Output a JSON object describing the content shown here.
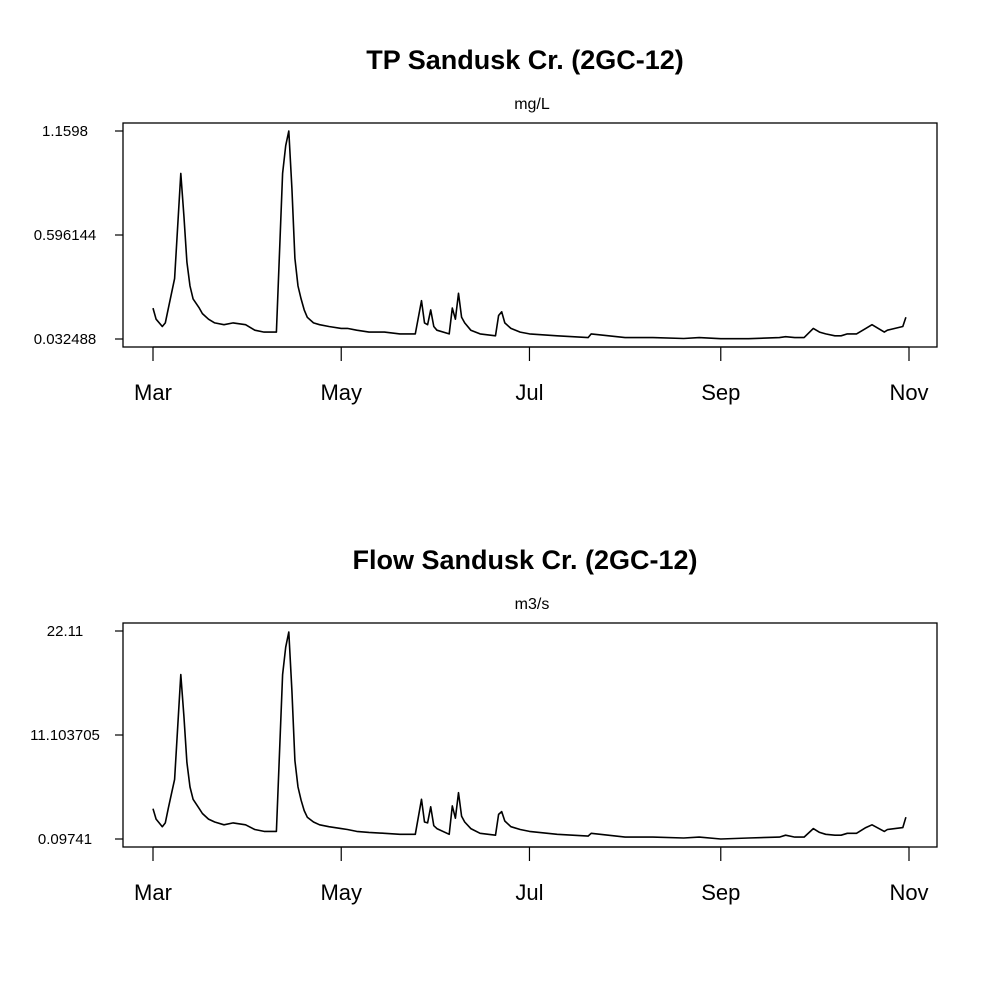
{
  "chart_data": [
    {
      "type": "line",
      "title": "TP Sandusk Cr. (2GC-12)",
      "ylabel": "mg/L",
      "xlabel": "",
      "ylim": [
        0.032488,
        1.1598
      ],
      "yticks": [
        {
          "value": 0.032488,
          "label": "0.032488"
        },
        {
          "value": 0.596144,
          "label": "0.596144"
        },
        {
          "value": 1.1598,
          "label": "1.1598"
        }
      ],
      "xticks": [
        {
          "date": "2012-03-01",
          "label": "Mar"
        },
        {
          "date": "2012-05-01",
          "label": "May"
        },
        {
          "date": "2012-07-01",
          "label": "Jul"
        },
        {
          "date": "2012-09-01",
          "label": "Sep"
        },
        {
          "date": "2012-11-01",
          "label": "Nov"
        }
      ],
      "xlim": [
        "2012-03-01",
        "2012-11-01"
      ],
      "grid": false,
      "series": [
        {
          "x": [
            "2012-03-01",
            "2012-03-02",
            "2012-03-04",
            "2012-03-05",
            "2012-03-06",
            "2012-03-07",
            "2012-03-08",
            "2012-03-10",
            "2012-03-11",
            "2012-03-12",
            "2012-03-13",
            "2012-03-14",
            "2012-03-16",
            "2012-03-17",
            "2012-03-19",
            "2012-03-21",
            "2012-03-24",
            "2012-03-27",
            "2012-03-31",
            "2012-04-03",
            "2012-04-06",
            "2012-04-10",
            "2012-04-12",
            "2012-04-13",
            "2012-04-14",
            "2012-04-15",
            "2012-04-16",
            "2012-04-17",
            "2012-04-18",
            "2012-04-19",
            "2012-04-20",
            "2012-04-22",
            "2012-04-24",
            "2012-04-27",
            "2012-05-01",
            "2012-05-03",
            "2012-05-06",
            "2012-05-10",
            "2012-05-15",
            "2012-05-20",
            "2012-05-25",
            "2012-05-27",
            "2012-05-28",
            "2012-05-29",
            "2012-05-30",
            "2012-05-31",
            "2012-06-01",
            "2012-06-05",
            "2012-06-06",
            "2012-06-07",
            "2012-06-08",
            "2012-06-09",
            "2012-06-10",
            "2012-06-12",
            "2012-06-15",
            "2012-06-20",
            "2012-06-21",
            "2012-06-22",
            "2012-06-23",
            "2012-06-25",
            "2012-06-28",
            "2012-07-01",
            "2012-07-10",
            "2012-07-20",
            "2012-07-21",
            "2012-08-01",
            "2012-08-10",
            "2012-08-20",
            "2012-08-25",
            "2012-09-01",
            "2012-09-10",
            "2012-09-20",
            "2012-09-22",
            "2012-09-25",
            "2012-09-28",
            "2012-10-01",
            "2012-10-03",
            "2012-10-05",
            "2012-10-08",
            "2012-10-10",
            "2012-10-12",
            "2012-10-15",
            "2012-10-18",
            "2012-10-20",
            "2012-10-24",
            "2012-10-25",
            "2012-10-30",
            "2012-10-31"
          ],
          "y": [
            0.2,
            0.14,
            0.1,
            0.12,
            0.2,
            0.28,
            0.36,
            0.93,
            0.7,
            0.45,
            0.32,
            0.25,
            0.2,
            0.17,
            0.14,
            0.12,
            0.11,
            0.12,
            0.11,
            0.08,
            0.07,
            0.07,
            0.93,
            1.08,
            1.16,
            0.85,
            0.47,
            0.32,
            0.25,
            0.19,
            0.15,
            0.12,
            0.11,
            0.1,
            0.09,
            0.09,
            0.08,
            0.07,
            0.07,
            0.06,
            0.06,
            0.24,
            0.12,
            0.11,
            0.19,
            0.1,
            0.08,
            0.06,
            0.2,
            0.14,
            0.28,
            0.15,
            0.12,
            0.08,
            0.06,
            0.05,
            0.16,
            0.18,
            0.12,
            0.09,
            0.07,
            0.06,
            0.05,
            0.04,
            0.06,
            0.04,
            0.04,
            0.035,
            0.04,
            0.034,
            0.034,
            0.04,
            0.045,
            0.04,
            0.04,
            0.09,
            0.07,
            0.06,
            0.05,
            0.05,
            0.06,
            0.06,
            0.09,
            0.11,
            0.07,
            0.08,
            0.1,
            0.15
          ]
        }
      ]
    },
    {
      "type": "line",
      "title": "Flow Sandusk Cr. (2GC-12)",
      "ylabel": "m3/s",
      "xlabel": "",
      "ylim": [
        0.09741,
        22.11
      ],
      "yticks": [
        {
          "value": 0.09741,
          "label": "0.09741"
        },
        {
          "value": 11.103705,
          "label": "11.103705"
        },
        {
          "value": 22.11,
          "label": "22.11"
        }
      ],
      "xticks": [
        {
          "date": "2012-03-01",
          "label": "Mar"
        },
        {
          "date": "2012-05-01",
          "label": "May"
        },
        {
          "date": "2012-07-01",
          "label": "Jul"
        },
        {
          "date": "2012-09-01",
          "label": "Sep"
        },
        {
          "date": "2012-11-01",
          "label": "Nov"
        }
      ],
      "xlim": [
        "2012-03-01",
        "2012-11-01"
      ],
      "grid": false,
      "series": [
        {
          "x": [
            "2012-03-01",
            "2012-03-02",
            "2012-03-04",
            "2012-03-05",
            "2012-03-06",
            "2012-03-07",
            "2012-03-08",
            "2012-03-10",
            "2012-03-11",
            "2012-03-12",
            "2012-03-13",
            "2012-03-14",
            "2012-03-16",
            "2012-03-17",
            "2012-03-19",
            "2012-03-21",
            "2012-03-24",
            "2012-03-27",
            "2012-03-31",
            "2012-04-03",
            "2012-04-06",
            "2012-04-10",
            "2012-04-12",
            "2012-04-13",
            "2012-04-14",
            "2012-04-15",
            "2012-04-16",
            "2012-04-17",
            "2012-04-18",
            "2012-04-19",
            "2012-04-20",
            "2012-04-22",
            "2012-04-24",
            "2012-04-27",
            "2012-05-01",
            "2012-05-03",
            "2012-05-06",
            "2012-05-10",
            "2012-05-15",
            "2012-05-20",
            "2012-05-25",
            "2012-05-27",
            "2012-05-28",
            "2012-05-29",
            "2012-05-30",
            "2012-05-31",
            "2012-06-01",
            "2012-06-05",
            "2012-06-06",
            "2012-06-07",
            "2012-06-08",
            "2012-06-09",
            "2012-06-10",
            "2012-06-12",
            "2012-06-15",
            "2012-06-20",
            "2012-06-21",
            "2012-06-22",
            "2012-06-23",
            "2012-06-25",
            "2012-06-28",
            "2012-07-01",
            "2012-07-10",
            "2012-07-20",
            "2012-07-21",
            "2012-08-01",
            "2012-08-10",
            "2012-08-20",
            "2012-08-25",
            "2012-09-01",
            "2012-09-10",
            "2012-09-20",
            "2012-09-22",
            "2012-09-25",
            "2012-09-28",
            "2012-10-01",
            "2012-10-03",
            "2012-10-05",
            "2012-10-08",
            "2012-10-10",
            "2012-10-12",
            "2012-10-15",
            "2012-10-18",
            "2012-10-20",
            "2012-10-24",
            "2012-10-25",
            "2012-10-30",
            "2012-10-31"
          ],
          "y": [
            3.3,
            2.2,
            1.4,
            1.8,
            3.4,
            4.9,
            6.4,
            17.5,
            13.1,
            8.2,
            5.6,
            4.3,
            3.3,
            2.8,
            2.2,
            1.9,
            1.6,
            1.8,
            1.6,
            1.1,
            0.9,
            0.9,
            17.5,
            20.4,
            22.0,
            15.8,
            8.4,
            5.6,
            4.2,
            3.1,
            2.4,
            1.9,
            1.6,
            1.4,
            1.2,
            1.1,
            0.9,
            0.8,
            0.7,
            0.6,
            0.6,
            4.3,
            1.9,
            1.8,
            3.5,
            1.5,
            1.2,
            0.6,
            3.6,
            2.3,
            5.0,
            2.5,
            1.9,
            1.2,
            0.7,
            0.5,
            2.7,
            3.0,
            2.0,
            1.4,
            1.1,
            0.9,
            0.6,
            0.4,
            0.7,
            0.3,
            0.3,
            0.2,
            0.3,
            0.1,
            0.2,
            0.3,
            0.5,
            0.3,
            0.3,
            1.2,
            0.8,
            0.6,
            0.5,
            0.5,
            0.7,
            0.7,
            1.3,
            1.6,
            0.9,
            1.1,
            1.3,
            2.4
          ]
        }
      ]
    }
  ]
}
